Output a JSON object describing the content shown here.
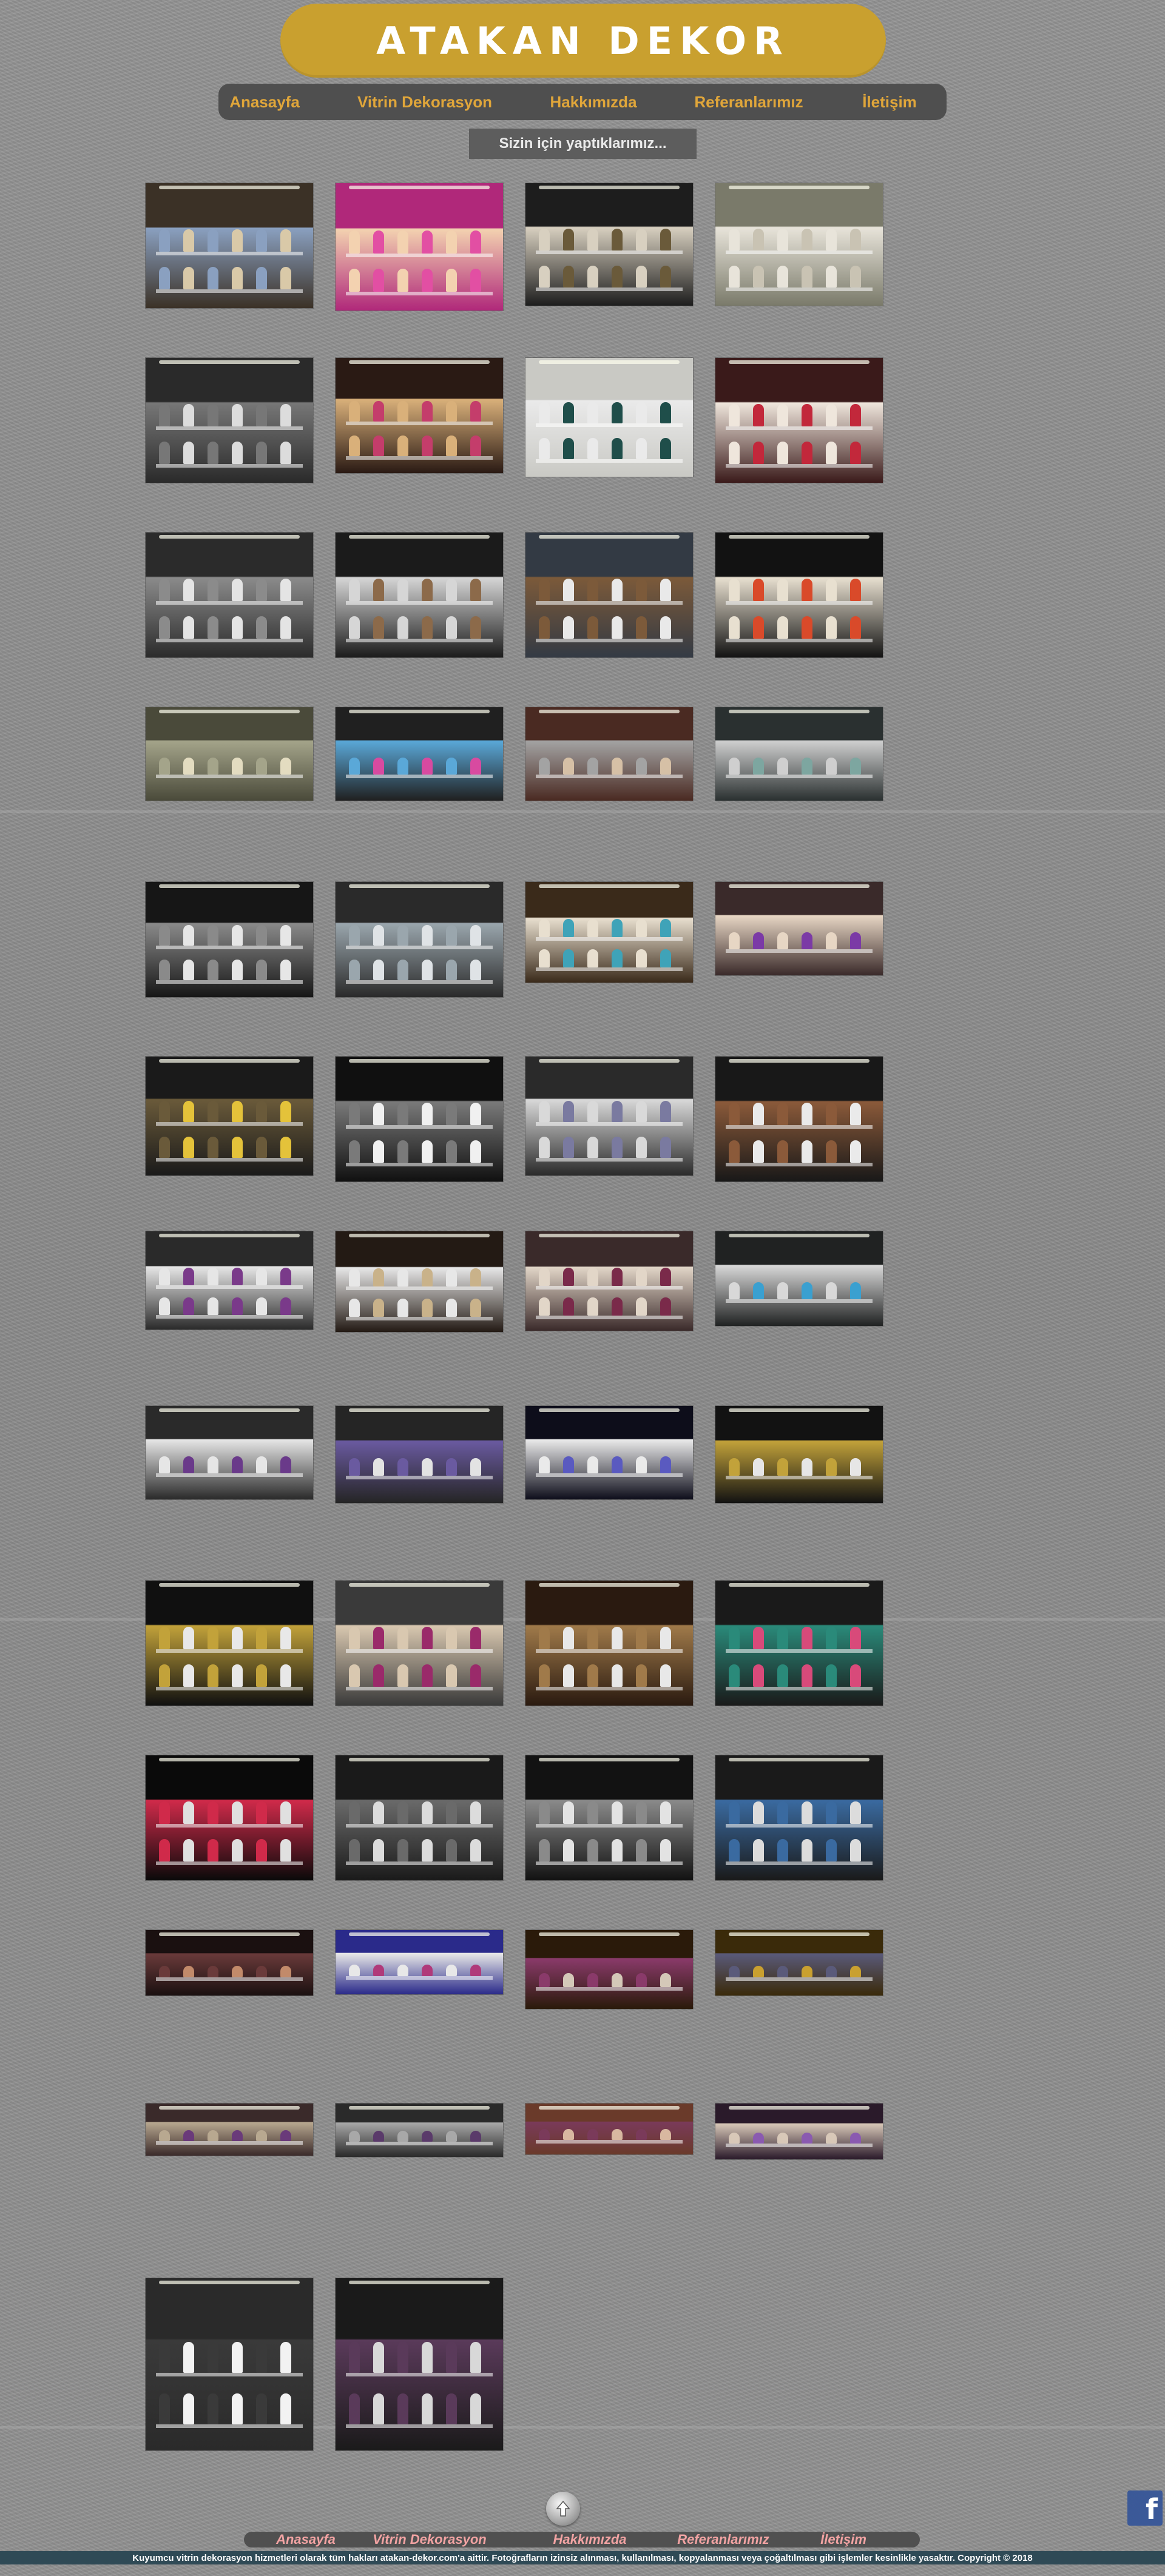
{
  "header": {
    "title": "ATAKAN DEKOR"
  },
  "nav": {
    "items": [
      {
        "label": "Anasayfa"
      },
      {
        "label": "Vitrin Dekorasyon"
      },
      {
        "label": "Hakkımızda"
      },
      {
        "label": "Referanlarımız"
      },
      {
        "label": "İletişim"
      }
    ]
  },
  "section": {
    "label": "Sizin için yaptıklarımız..."
  },
  "gallery": {
    "photos": [
      {
        "name": "photo-1",
        "theme": [
          "#3b3126",
          "#d9c9a8",
          "#8aa0c0"
        ]
      },
      {
        "name": "photo-2",
        "theme": [
          "#b0287a",
          "#e24fa3",
          "#f3d2b0"
        ]
      },
      {
        "name": "photo-3",
        "theme": [
          "#1d1d1d",
          "#6a5a3a",
          "#d8d0c0"
        ]
      },
      {
        "name": "photo-4",
        "theme": [
          "#7a7a6a",
          "#c9c3b3",
          "#e8e4da"
        ]
      },
      {
        "name": "photo-5",
        "theme": [
          "#2a2a2a",
          "#dcdcdc",
          "#777777"
        ]
      },
      {
        "name": "photo-6",
        "theme": [
          "#2a1a14",
          "#c43d6b",
          "#d9b07a"
        ]
      },
      {
        "name": "photo-7",
        "theme": [
          "#c9c9c4",
          "#1f4e4a",
          "#eaeaea"
        ]
      },
      {
        "name": "photo-8",
        "theme": [
          "#3a1a1a",
          "#c2283b",
          "#efe6dc"
        ]
      },
      {
        "name": "photo-9",
        "theme": [
          "#2b2b2b",
          "#e4e4e4",
          "#8b8b8b"
        ]
      },
      {
        "name": "photo-10",
        "theme": [
          "#1b1b1b",
          "#8c6a4a",
          "#d6d6d6"
        ]
      },
      {
        "name": "photo-11",
        "theme": [
          "#333a44",
          "#e9e9e9",
          "#7c5a3a"
        ]
      },
      {
        "name": "photo-12",
        "theme": [
          "#121212",
          "#d94a2a",
          "#e8e0d0"
        ]
      },
      {
        "name": "photo-13",
        "theme": [
          "#4a4a3a",
          "#e3dcc0",
          "#a4a48a"
        ]
      },
      {
        "name": "photo-14",
        "theme": [
          "#202020",
          "#d84aa0",
          "#5aa8d8"
        ]
      },
      {
        "name": "photo-15",
        "theme": [
          "#4a2a22",
          "#d6c0a6",
          "#a3a3a3"
        ]
      },
      {
        "name": "photo-16",
        "theme": [
          "#2a3030",
          "#7da6a0",
          "#cfcfcf"
        ]
      },
      {
        "name": "photo-17",
        "theme": [
          "#161616",
          "#e6e6e6",
          "#8a8a8a"
        ]
      },
      {
        "name": "photo-18",
        "theme": [
          "#2a2a2a",
          "#dfe3e6",
          "#9aa6ad"
        ]
      },
      {
        "name": "photo-19",
        "theme": [
          "#3a2a1a",
          "#3fa3b8",
          "#e8dfcf"
        ]
      },
      {
        "name": "photo-20",
        "theme": [
          "#3a2a2a",
          "#7b3aa6",
          "#e7d6c4"
        ]
      },
      {
        "name": "photo-21",
        "theme": [
          "#1a1a1a",
          "#e4c23a",
          "#6a5a3a"
        ]
      },
      {
        "name": "photo-22",
        "theme": [
          "#101010",
          "#f0f0f0",
          "#7a7a7a"
        ]
      },
      {
        "name": "photo-23",
        "theme": [
          "#2a2a2a",
          "#7a7aa0",
          "#d9d9d9"
        ]
      },
      {
        "name": "photo-24",
        "theme": [
          "#181818",
          "#eaeaea",
          "#8b5a3a"
        ]
      },
      {
        "name": "photo-25",
        "theme": [
          "#2a2a2a",
          "#7a3a8a",
          "#e6e6e6"
        ]
      },
      {
        "name": "photo-26",
        "theme": [
          "#231a14",
          "#c9b28a",
          "#e7e7e7"
        ]
      },
      {
        "name": "photo-27",
        "theme": [
          "#3a2a2a",
          "#7a2a4a",
          "#e2d6c8"
        ]
      },
      {
        "name": "photo-28",
        "theme": [
          "#202222",
          "#3aa0d0",
          "#d8d8d8"
        ]
      },
      {
        "name": "photo-29",
        "theme": [
          "#2a2a2a",
          "#6a3a8a",
          "#e6e6e6"
        ]
      },
      {
        "name": "photo-30",
        "theme": [
          "#252525",
          "#e3e3e3",
          "#6a5aa0"
        ]
      },
      {
        "name": "photo-31",
        "theme": [
          "#0d0d1a",
          "#5a5ac0",
          "#eaeaea"
        ]
      },
      {
        "name": "photo-32",
        "theme": [
          "#121212",
          "#e6e6e6",
          "#c2a23a"
        ]
      },
      {
        "name": "photo-33",
        "theme": [
          "#101010",
          "#e8e8e8",
          "#c2a23a"
        ]
      },
      {
        "name": "photo-34",
        "theme": [
          "#3a3a3a",
          "#9a2a6a",
          "#d9c8b0"
        ]
      },
      {
        "name": "photo-35",
        "theme": [
          "#2a1a10",
          "#e8e8e8",
          "#a07a4a"
        ]
      },
      {
        "name": "photo-36",
        "theme": [
          "#1a1a1a",
          "#d84a7a",
          "#2a8a7a"
        ]
      },
      {
        "name": "photo-37",
        "theme": [
          "#0a0a0a",
          "#e0e0e0",
          "#d02a4a"
        ]
      },
      {
        "name": "photo-38",
        "theme": [
          "#1a1a1a",
          "#dcdcdc",
          "#6a6a6a"
        ]
      },
      {
        "name": "photo-39",
        "theme": [
          "#121212",
          "#e3e3e3",
          "#8a8a8a"
        ]
      },
      {
        "name": "photo-40",
        "theme": [
          "#1a1a1a",
          "#dcdcdc",
          "#3a6aa0"
        ]
      },
      {
        "name": "photo-41",
        "theme": [
          "#1a1010",
          "#c28a6a",
          "#6a3a3a"
        ]
      },
      {
        "name": "photo-42",
        "theme": [
          "#2a2a8a",
          "#b03a7a",
          "#e8e8e8"
        ]
      },
      {
        "name": "photo-43",
        "theme": [
          "#2a1a0a",
          "#d4c8b8",
          "#8a3a6a"
        ]
      },
      {
        "name": "photo-44",
        "theme": [
          "#3a2a0a",
          "#c9a02f",
          "#5a5a7a"
        ]
      },
      {
        "name": "photo-45",
        "theme": [
          "#3a2a2a",
          "#6a3a7a",
          "#b8a890"
        ]
      },
      {
        "name": "photo-46",
        "theme": [
          "#2a2a2a",
          "#5a3a6a",
          "#a8a8a8"
        ]
      },
      {
        "name": "photo-47",
        "theme": [
          "#6a3a2a",
          "#d8b8a0",
          "#7a3a5a"
        ]
      },
      {
        "name": "photo-48",
        "theme": [
          "#2a1a2a",
          "#8a5ab0",
          "#d8c8b8"
        ]
      },
      {
        "name": "photo-49",
        "theme": [
          "#2a2a2a",
          "#f2f2f2",
          "#3a3a3a"
        ]
      },
      {
        "name": "photo-50",
        "theme": [
          "#1a1a1a",
          "#d8d8d8",
          "#5a3a5a"
        ]
      }
    ]
  },
  "footer": {
    "nav": [
      {
        "label": "Anasayfa"
      },
      {
        "label": "Vitrin Dekorasyon"
      },
      {
        "label": "Hakkımızda"
      },
      {
        "label": "Referanlarımız"
      },
      {
        "label": "İletişim"
      }
    ],
    "facebook_label": "f",
    "copyright": "Kuyumcu vitrin dekorasyon hizmetleri olarak tüm hakları atakan-dekor.com'a aittir. Fotoğrafların izinsiz alınması, kullanılması, kopyalanması veya çoğaltılması gibi işlemler kesinlikle yasaktır. Copyright © 2018"
  }
}
